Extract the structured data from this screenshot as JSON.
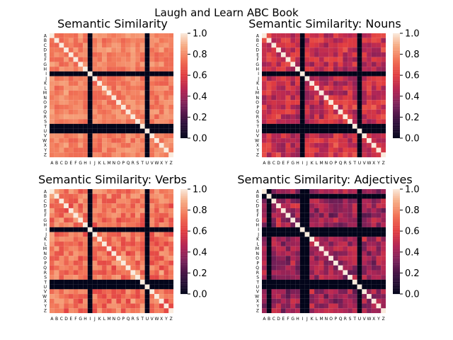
{
  "figure": {
    "suptitle": "Laugh and Learn ABC Book"
  },
  "chart_data": [
    {
      "type": "heatmap",
      "title": "Semantic Similarity",
      "xlabel": "",
      "ylabel": "",
      "x_categories": [
        "A",
        "B",
        "C",
        "D",
        "E",
        "F",
        "G",
        "H",
        "I",
        "J",
        "K",
        "L",
        "M",
        "N",
        "O",
        "P",
        "Q",
        "R",
        "S",
        "T",
        "U",
        "V",
        "W",
        "X",
        "Y",
        "Z"
      ],
      "y_categories": [
        "A",
        "B",
        "C",
        "D",
        "E",
        "F",
        "G",
        "H",
        "I",
        "J",
        "K",
        "L",
        "M",
        "N",
        "O",
        "P",
        "Q",
        "R",
        "S",
        "T",
        "U",
        "V",
        "W",
        "X",
        "Y",
        "Z"
      ],
      "zero_letters": [
        "I",
        "U"
      ],
      "zero_rows_extra": [
        "T"
      ],
      "base_level": 0.78,
      "variation": 0.08,
      "diagonal": 1.0,
      "colorbar": {
        "range": [
          0.0,
          1.0
        ],
        "ticks": [
          "0.0",
          "0.2",
          "0.4",
          "0.6",
          "0.8",
          "1.0"
        ]
      },
      "colormap": "rocket"
    },
    {
      "type": "heatmap",
      "title": "Semantic Similarity: Nouns",
      "xlabel": "",
      "ylabel": "",
      "x_categories": [
        "A",
        "B",
        "C",
        "D",
        "E",
        "F",
        "G",
        "H",
        "I",
        "J",
        "K",
        "L",
        "M",
        "N",
        "O",
        "P",
        "Q",
        "R",
        "S",
        "T",
        "U",
        "V",
        "W",
        "X",
        "Y",
        "Z"
      ],
      "y_categories": [
        "A",
        "B",
        "C",
        "D",
        "E",
        "F",
        "G",
        "H",
        "I",
        "J",
        "K",
        "L",
        "M",
        "N",
        "O",
        "P",
        "Q",
        "R",
        "S",
        "T",
        "U",
        "V",
        "W",
        "X",
        "Y",
        "Z"
      ],
      "zero_letters": [
        "I",
        "U"
      ],
      "zero_rows_extra": [
        "T"
      ],
      "base_level": 0.52,
      "variation": 0.14,
      "diagonal": 1.0,
      "colorbar": {
        "range": [
          0.0,
          1.0
        ],
        "ticks": [
          "0.0",
          "0.2",
          "0.4",
          "0.6",
          "0.8",
          "1.0"
        ]
      },
      "colormap": "rocket"
    },
    {
      "type": "heatmap",
      "title": "Semantic Similarity: Verbs",
      "xlabel": "",
      "ylabel": "",
      "x_categories": [
        "A",
        "B",
        "C",
        "D",
        "E",
        "F",
        "G",
        "H",
        "I",
        "J",
        "K",
        "L",
        "M",
        "N",
        "O",
        "P",
        "Q",
        "R",
        "S",
        "T",
        "U",
        "V",
        "W",
        "X",
        "Y",
        "Z"
      ],
      "y_categories": [
        "A",
        "B",
        "C",
        "D",
        "E",
        "F",
        "G",
        "H",
        "I",
        "J",
        "K",
        "L",
        "M",
        "N",
        "O",
        "P",
        "Q",
        "R",
        "S",
        "T",
        "U",
        "V",
        "W",
        "X",
        "Y",
        "Z"
      ],
      "zero_letters": [
        "I",
        "U"
      ],
      "zero_rows_extra": [
        "T"
      ],
      "base_level": 0.74,
      "variation": 0.12,
      "diagonal": 1.0,
      "colorbar": {
        "range": [
          0.0,
          1.0
        ],
        "ticks": [
          "0.0",
          "0.2",
          "0.4",
          "0.6",
          "0.8",
          "1.0"
        ]
      },
      "colormap": "rocket"
    },
    {
      "type": "heatmap",
      "title": "Semantic Similarity: Adjectives",
      "xlabel": "",
      "ylabel": "",
      "x_categories": [
        "A",
        "B",
        "C",
        "D",
        "E",
        "F",
        "G",
        "H",
        "I",
        "J",
        "K",
        "L",
        "M",
        "N",
        "O",
        "P",
        "Q",
        "R",
        "S",
        "T",
        "U",
        "V",
        "W",
        "X",
        "Y",
        "Z"
      ],
      "y_categories": [
        "A",
        "B",
        "C",
        "D",
        "E",
        "F",
        "G",
        "H",
        "I",
        "J",
        "K",
        "L",
        "M",
        "N",
        "O",
        "P",
        "Q",
        "R",
        "S",
        "T",
        "U",
        "V",
        "W",
        "X",
        "Y",
        "Z"
      ],
      "zero_letters": [
        "B",
        "I",
        "J",
        "U"
      ],
      "zero_rows_extra": [
        "T"
      ],
      "base_level": 0.42,
      "variation": 0.14,
      "diagonal": 1.0,
      "colorbar": {
        "range": [
          0.0,
          1.0
        ],
        "ticks": [
          "0.0",
          "0.2",
          "0.4",
          "0.6",
          "0.8",
          "1.0"
        ]
      },
      "colormap": "rocket"
    }
  ]
}
